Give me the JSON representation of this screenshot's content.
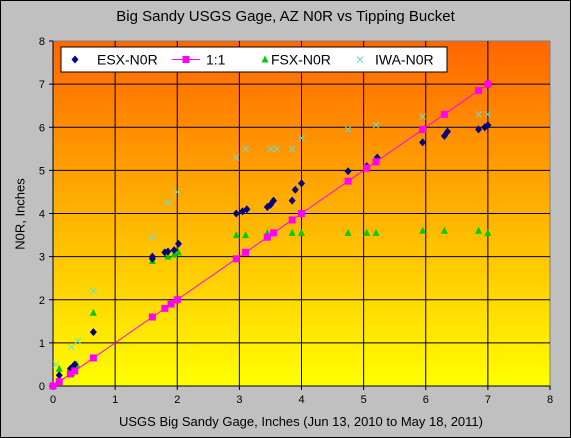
{
  "chart_data": {
    "type": "scatter",
    "title": "Big Sandy USGS Gage, AZ N0R  vs Tipping Bucket",
    "xlabel": "USGS Big Sandy Gage, Inches (Jun 13, 2010 to May 18, 2011)",
    "ylabel": "N0R, Inches",
    "xlim": [
      0,
      8
    ],
    "ylim": [
      0,
      8
    ],
    "xticks": [
      "0",
      "1",
      "2",
      "3",
      "4",
      "5",
      "6",
      "7",
      "8"
    ],
    "yticks": [
      "0",
      "1",
      "2",
      "3",
      "4",
      "5",
      "6",
      "7",
      "8"
    ],
    "grid": true,
    "legend_position": "top-left",
    "background_gradient": {
      "top": "#ff6600",
      "bottom": "#ffff00"
    },
    "series": [
      {
        "name": "ESX-N0R",
        "marker": "diamond",
        "color": "#000080",
        "points": [
          [
            0,
            0
          ],
          [
            0.1,
            0.25
          ],
          [
            0.28,
            0.4
          ],
          [
            0.32,
            0.45
          ],
          [
            0.35,
            0.5
          ],
          [
            0.65,
            1.25
          ],
          [
            1.6,
            3.0
          ],
          [
            1.6,
            2.95
          ],
          [
            1.8,
            3.1
          ],
          [
            1.85,
            3.12
          ],
          [
            1.95,
            3.15
          ],
          [
            2.02,
            3.3
          ],
          [
            2.95,
            4.0
          ],
          [
            3.05,
            4.05
          ],
          [
            3.12,
            4.1
          ],
          [
            3.45,
            4.15
          ],
          [
            3.5,
            4.2
          ],
          [
            3.55,
            4.3
          ],
          [
            3.85,
            4.3
          ],
          [
            3.9,
            4.55
          ],
          [
            4.0,
            4.7
          ],
          [
            4.75,
            4.98
          ],
          [
            5.05,
            5.1
          ],
          [
            5.2,
            5.2
          ],
          [
            5.22,
            5.3
          ],
          [
            5.95,
            5.65
          ],
          [
            6.3,
            5.8
          ],
          [
            6.35,
            5.9
          ],
          [
            6.85,
            5.95
          ],
          [
            6.95,
            6.0
          ],
          [
            7.0,
            6.05
          ]
        ]
      },
      {
        "name": "1:1",
        "marker": "square",
        "color": "#ff00ff",
        "line": true,
        "points": [
          [
            0,
            0
          ],
          [
            0.1,
            0.1
          ],
          [
            0.28,
            0.28
          ],
          [
            0.35,
            0.35
          ],
          [
            0.65,
            0.65
          ],
          [
            1.6,
            1.6
          ],
          [
            1.8,
            1.8
          ],
          [
            1.9,
            1.9
          ],
          [
            2.0,
            2.0
          ],
          [
            2.95,
            2.95
          ],
          [
            3.1,
            3.1
          ],
          [
            3.45,
            3.45
          ],
          [
            3.55,
            3.55
          ],
          [
            3.85,
            3.85
          ],
          [
            4.0,
            4.0
          ],
          [
            4.75,
            4.75
          ],
          [
            5.05,
            5.05
          ],
          [
            5.2,
            5.2
          ],
          [
            5.95,
            5.95
          ],
          [
            6.3,
            6.3
          ],
          [
            6.85,
            6.85
          ],
          [
            7.0,
            7.0
          ]
        ]
      },
      {
        "name": "FSX-N0R",
        "marker": "triangle",
        "color": "#00cc00",
        "points": [
          [
            0.1,
            0.4
          ],
          [
            0.3,
            0.3
          ],
          [
            0.38,
            0.5
          ],
          [
            0.65,
            1.7
          ],
          [
            1.6,
            2.9
          ],
          [
            1.85,
            3.0
          ],
          [
            1.95,
            3.05
          ],
          [
            2.02,
            3.1
          ],
          [
            2.95,
            3.5
          ],
          [
            3.1,
            3.5
          ],
          [
            3.45,
            3.55
          ],
          [
            3.55,
            3.55
          ],
          [
            3.85,
            3.55
          ],
          [
            4.0,
            3.55
          ],
          [
            4.75,
            3.55
          ],
          [
            5.05,
            3.55
          ],
          [
            5.2,
            3.55
          ],
          [
            5.95,
            3.6
          ],
          [
            6.3,
            3.6
          ],
          [
            6.85,
            3.6
          ],
          [
            7.0,
            3.55
          ]
        ]
      },
      {
        "name": "IWA-N0R",
        "marker": "x",
        "color": "#66dddd",
        "points": [
          [
            0.05,
            0.5
          ],
          [
            0.3,
            0.9
          ],
          [
            0.4,
            1.05
          ],
          [
            0.65,
            2.2
          ],
          [
            1.6,
            3.45
          ],
          [
            1.85,
            4.25
          ],
          [
            2.0,
            4.5
          ],
          [
            2.95,
            5.3
          ],
          [
            3.1,
            5.5
          ],
          [
            3.5,
            5.5
          ],
          [
            3.6,
            5.5
          ],
          [
            3.85,
            5.5
          ],
          [
            4.0,
            5.75
          ],
          [
            4.75,
            5.95
          ],
          [
            5.2,
            6.05
          ],
          [
            5.95,
            6.25
          ],
          [
            6.3,
            6.3
          ],
          [
            6.85,
            6.3
          ],
          [
            7.0,
            6.3
          ]
        ]
      }
    ]
  }
}
